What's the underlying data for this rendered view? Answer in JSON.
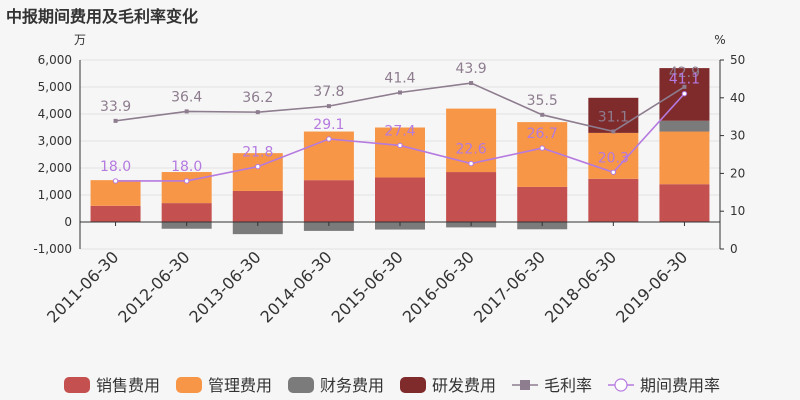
{
  "title": "中报期间费用及毛利率变化",
  "chart_data": {
    "type": "bar",
    "left_axis_unit": "万",
    "right_axis_unit": "%",
    "categories": [
      "2011-06-30",
      "2012-06-30",
      "2013-06-30",
      "2014-06-30",
      "2015-06-30",
      "2016-06-30",
      "2017-06-30",
      "2018-06-30",
      "2019-06-30"
    ],
    "y_left_ticks": [
      "-1,000",
      "0",
      "1,000",
      "2,000",
      "3,000",
      "4,000",
      "5,000",
      "6,000"
    ],
    "y_left_range": [
      -1000,
      6000
    ],
    "y_right_ticks": [
      "0",
      "10",
      "20",
      "30",
      "40",
      "50"
    ],
    "y_right_range": [
      0,
      50
    ],
    "grid": true,
    "legend_position": "bottom",
    "bar_series": [
      {
        "name": "销售费用",
        "color": "#c4504f",
        "values": [
          600,
          700,
          1150,
          1550,
          1650,
          1850,
          1300,
          1600,
          1400
        ]
      },
      {
        "name": "管理费用",
        "color": "#f79646",
        "values": [
          950,
          1150,
          1400,
          1800,
          1850,
          2350,
          2400,
          1700,
          1950
        ]
      },
      {
        "name": "财务费用",
        "color": "#7b7b7b",
        "values": [
          0,
          -250,
          -450,
          -330,
          -280,
          -200,
          -270,
          0,
          400
        ]
      },
      {
        "name": "研发费用",
        "color": "#7f2b2c",
        "values": [
          0,
          0,
          0,
          0,
          0,
          0,
          0,
          1300,
          1950
        ]
      }
    ],
    "line_series": [
      {
        "name": "毛利率",
        "color": "#8d7d8f",
        "marker": "square",
        "values": [
          33.9,
          36.4,
          36.2,
          37.8,
          41.4,
          43.9,
          35.5,
          31.1,
          42.9
        ],
        "labels": [
          "33.9",
          "36.4",
          "36.2",
          "37.8",
          "41.4",
          "43.9",
          "35.5",
          "31.1",
          "42.9"
        ]
      },
      {
        "name": "期间费用率",
        "color": "#b57ae0",
        "marker": "circle",
        "values": [
          18.0,
          18.0,
          21.8,
          29.1,
          27.4,
          22.6,
          26.7,
          20.3,
          41.1
        ],
        "labels": [
          "18.0",
          "18.0",
          "21.8",
          "29.1",
          "27.4",
          "22.6",
          "26.7",
          "20.3",
          "41.1"
        ]
      }
    ]
  }
}
